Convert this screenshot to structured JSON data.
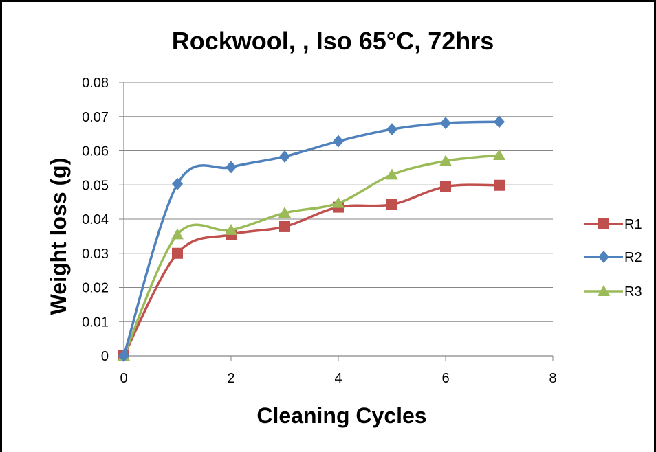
{
  "chart_data": {
    "type": "scatter",
    "title": "Rockwool, , Iso 65°C, 72hrs",
    "xlabel": "Cleaning Cycles",
    "ylabel": "Weight loss (g)",
    "xlim": [
      0,
      8
    ],
    "ylim": [
      0,
      0.08
    ],
    "xticks": [
      "0",
      "2",
      "4",
      "6",
      "8"
    ],
    "yticks": [
      "0",
      "0.01",
      "0.02",
      "0.03",
      "0.04",
      "0.05",
      "0.06",
      "0.07",
      "0.08"
    ],
    "grid": "horizontal",
    "smooth_lines": true,
    "legend_position": "right",
    "series": [
      {
        "name": "R1",
        "color": "#C0504D",
        "marker": "square",
        "x": [
          0,
          1,
          2,
          3,
          4,
          5,
          6,
          7
        ],
        "y": [
          0,
          0.03,
          0.0355,
          0.0378,
          0.0435,
          0.0443,
          0.0495,
          0.0499
        ]
      },
      {
        "name": "R2",
        "color": "#4F81BD",
        "marker": "diamond",
        "x": [
          0,
          1,
          2,
          3,
          4,
          5,
          6,
          7
        ],
        "y": [
          0,
          0.0503,
          0.0552,
          0.0583,
          0.0628,
          0.0663,
          0.0681,
          0.0685
        ]
      },
      {
        "name": "R3",
        "color": "#9BBB59",
        "marker": "triangle",
        "x": [
          0,
          1,
          2,
          3,
          4,
          5,
          6,
          7
        ],
        "y": [
          0,
          0.0355,
          0.0368,
          0.0418,
          0.0447,
          0.053,
          0.057,
          0.0587
        ]
      }
    ]
  }
}
